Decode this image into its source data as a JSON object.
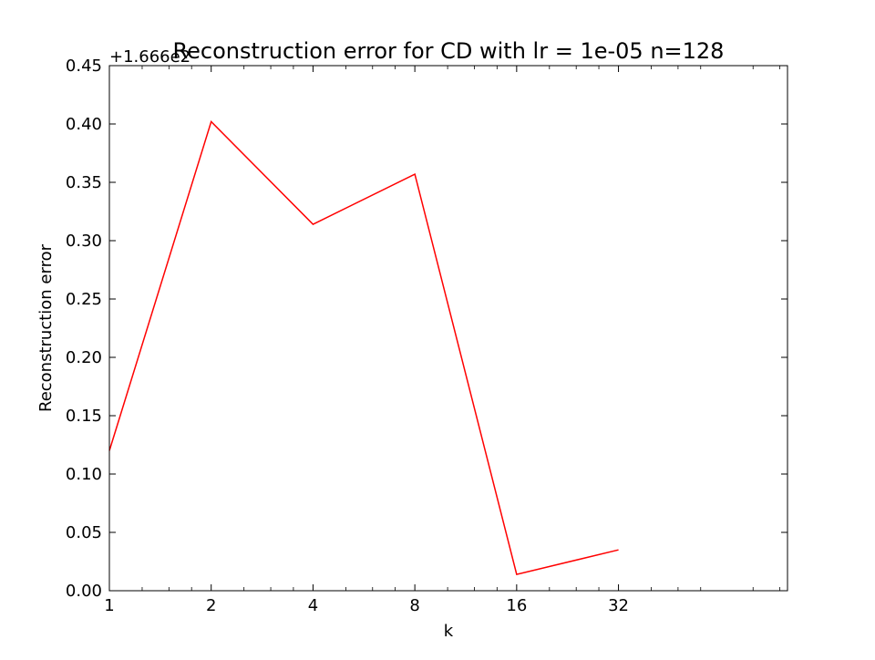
{
  "chart_data": {
    "type": "line",
    "title": "Reconstruction error for CD with lr = 1e-05 n=128",
    "xlabel": "k",
    "ylabel": "Reconstruction error",
    "offset_label": "+1.666e2",
    "x": [
      1,
      2,
      4,
      8,
      16,
      32
    ],
    "x_scale": "log2",
    "xlim_exponent": [
      0,
      6.66
    ],
    "xtick_labels": [
      "1",
      "2",
      "4",
      "8",
      "16",
      "32"
    ],
    "ylim": [
      0.0,
      0.45
    ],
    "ytick_labels": [
      "0.00",
      "0.05",
      "0.10",
      "0.15",
      "0.20",
      "0.25",
      "0.30",
      "0.35",
      "0.40",
      "0.45"
    ],
    "series": [
      {
        "values": [
          0.12,
          0.402,
          0.314,
          0.357,
          0.014,
          0.035
        ],
        "color": "#ff0000"
      }
    ],
    "grid": false,
    "legend": "none"
  }
}
